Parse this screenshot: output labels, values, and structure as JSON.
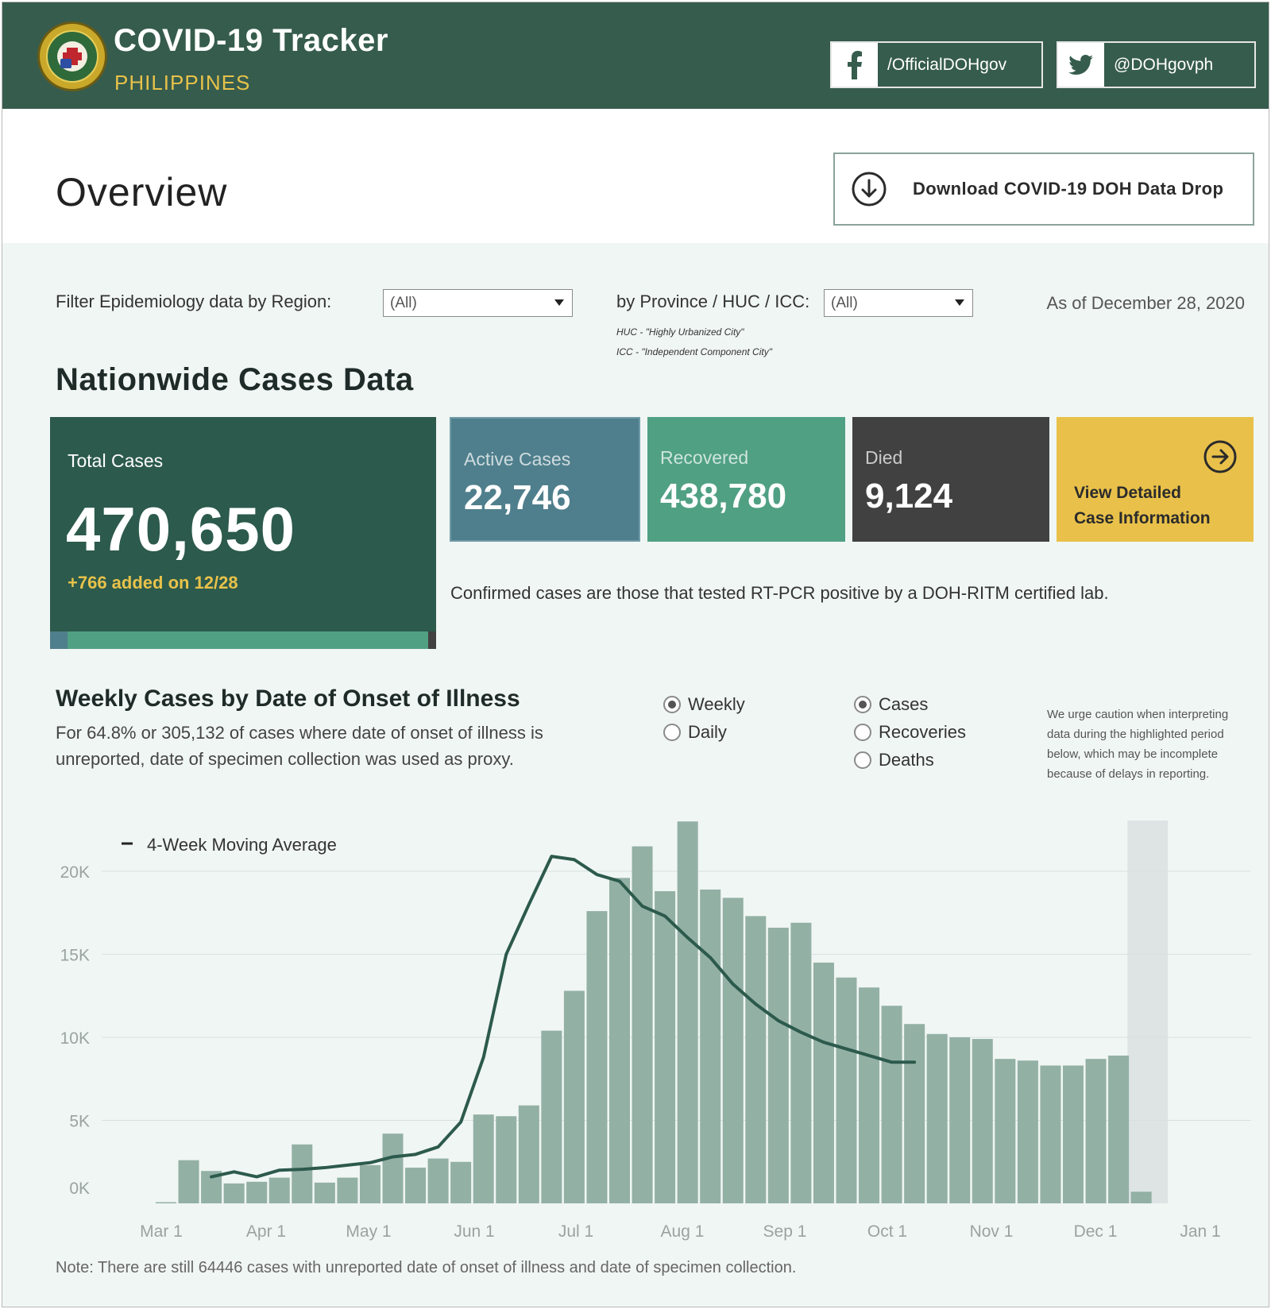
{
  "header": {
    "title": "COVID-19 Tracker",
    "subtitle": "PHILIPPINES",
    "facebook": "/OfficialDOHgov",
    "twitter": "@DOHgovph"
  },
  "overview": {
    "title": "Overview",
    "download_label": "Download COVID-19 DOH Data Drop"
  },
  "filters": {
    "region_label": "Filter Epidemiology data by Region:",
    "region_value": "(All)",
    "province_label": "by Province / HUC / ICC:",
    "province_value": "(All)",
    "huc_note": "HUC - \"Highly Urbanized City\"",
    "icc_note": "ICC - \"Independent Component City\"",
    "as_of": "As of December 28, 2020"
  },
  "nationwide": {
    "title": "Nationwide Cases Data",
    "total_label": "Total Cases",
    "total_value": "470,650",
    "added": "+766 added on 12/28",
    "active_label": "Active Cases",
    "active_value": "22,746",
    "recovered_label": "Recovered",
    "recovered_value": "438,780",
    "died_label": "Died",
    "died_value": "9,124",
    "detail_line1": "View Detailed",
    "detail_line2": "Case Information",
    "confirmed_note": "Confirmed cases are those that tested RT-PCR positive by a DOH-RITM certified lab."
  },
  "weekly": {
    "title": "Weekly Cases by Date of Onset of Illness",
    "subtitle": "For 64.8% or 305,132 of cases where date of onset of illness is unreported, date of specimen collection was used as proxy.",
    "period_options": [
      {
        "label": "Weekly",
        "selected": true
      },
      {
        "label": "Daily",
        "selected": false
      }
    ],
    "metric_options": [
      {
        "label": "Cases",
        "selected": true
      },
      {
        "label": "Recoveries",
        "selected": false
      },
      {
        "label": "Deaths",
        "selected": false
      }
    ],
    "caution": "We urge caution when interpreting data during the highlighted period below, which may be incomplete because of delays in reporting.",
    "bottom_note": "Note: There are still 64446 cases with unreported date of onset of illness and date of specimen collection."
  },
  "colors": {
    "header": "#365c4d",
    "accent": "#e8c24a",
    "bar": "#93b0a5",
    "line": "#2c5a4c"
  },
  "chart_data": {
    "type": "bar",
    "title": "Weekly Cases by Date of Onset of Illness",
    "xlabel": "",
    "ylabel": "",
    "ylim": [
      0,
      23000
    ],
    "y_ticks": [
      "0K",
      "5K",
      "10K",
      "15K",
      "20K"
    ],
    "x_ticks": [
      "Mar 1",
      "Apr 1",
      "May 1",
      "Jun 1",
      "Jul 1",
      "Aug 1",
      "Sep 1",
      "Oct 1",
      "Nov 1",
      "Dec 1",
      "Jan 1"
    ],
    "legend": [
      "4-Week Moving Average"
    ],
    "highlight_from_week": 43,
    "series": [
      {
        "name": "Weekly Cases",
        "values": [
          50,
          2600,
          1950,
          1200,
          1300,
          1550,
          3550,
          1250,
          1550,
          2300,
          4200,
          2150,
          2700,
          2500,
          5350,
          5250,
          5900,
          10400,
          12800,
          17600,
          19600,
          21500,
          18800,
          23000,
          18900,
          18400,
          17300,
          16600,
          16900,
          14500,
          13600,
          13000,
          11900,
          10800,
          10200,
          10000,
          9900,
          8700,
          8600,
          8300,
          8300,
          8700,
          8900,
          700
        ]
      },
      {
        "name": "4-Week Moving Average",
        "start_index": 2,
        "values": [
          1600,
          1900,
          1600,
          2000,
          2050,
          2150,
          2300,
          2450,
          2800,
          2950,
          3400,
          4900,
          8800,
          15000,
          18000,
          20900,
          20700,
          19800,
          19400,
          17900,
          17300,
          16000,
          14800,
          13200,
          12000,
          11000,
          10300,
          9700,
          9300,
          8900,
          8500,
          8500
        ]
      }
    ]
  }
}
